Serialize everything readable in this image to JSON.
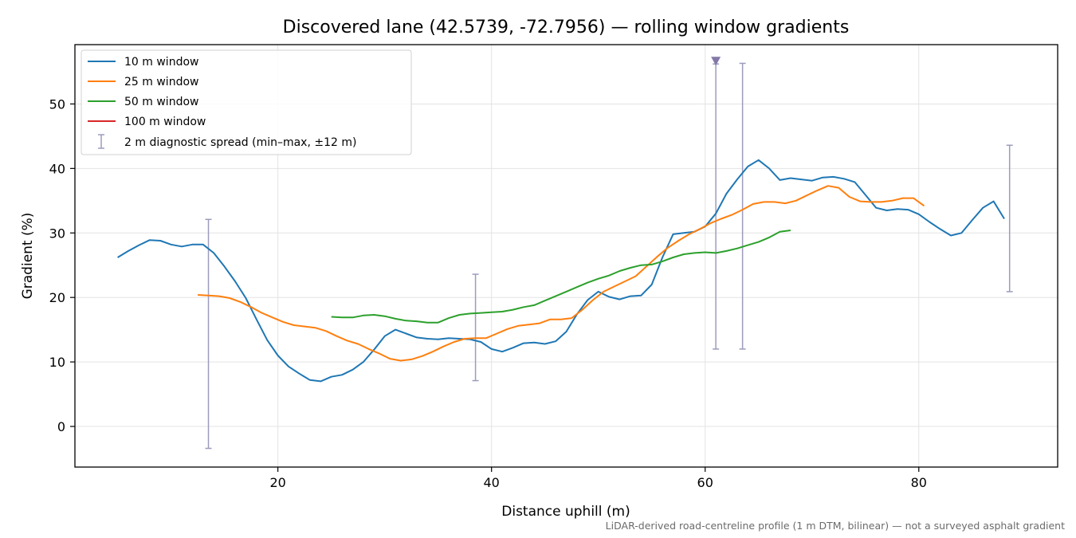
{
  "chart_data": {
    "type": "line",
    "title": "Discovered lane (42.5739, -72.7956) — rolling window gradients",
    "xlabel": "Distance uphill (m)",
    "ylabel": "Gradient (%)",
    "footnote": "LiDAR-derived road-centreline profile (1 m DTM, bilinear) — not a surveyed asphalt gradient",
    "xlim": [
      1,
      93
    ],
    "ylim": [
      -6.3,
      59.2
    ],
    "xticks": [
      20,
      40,
      60,
      80
    ],
    "yticks": [
      0,
      10,
      20,
      30,
      40,
      50
    ],
    "grid": true,
    "legend_position": "top-left",
    "series": [
      {
        "name": "10 m window",
        "color": "#1f77b4",
        "x": [
          5,
          6,
          7,
          8,
          9,
          10,
          11,
          12,
          13,
          14,
          15,
          16,
          17,
          18,
          19,
          20,
          21,
          22,
          23,
          24,
          25,
          26,
          27,
          28,
          29,
          30,
          31,
          32,
          33,
          34,
          35,
          36,
          37,
          38,
          39,
          40,
          41,
          42,
          43,
          44,
          45,
          46,
          47,
          48,
          49,
          50,
          51,
          52,
          53,
          54,
          55,
          56,
          57,
          58,
          59,
          60,
          61,
          62,
          63,
          64,
          65,
          66,
          67,
          68,
          69,
          70,
          71,
          72,
          73,
          74,
          75,
          76,
          77,
          78,
          79,
          80,
          81,
          82,
          83,
          84,
          85,
          86,
          87,
          88
        ],
        "values": [
          26.2,
          27.2,
          28.1,
          28.9,
          28.8,
          28.2,
          27.9,
          28.2,
          28.2,
          26.9,
          24.8,
          22.5,
          19.9,
          16.6,
          13.4,
          11.0,
          9.3,
          8.2,
          7.2,
          7.0,
          7.7,
          8.0,
          8.8,
          10.0,
          11.9,
          14.0,
          15.0,
          14.4,
          13.8,
          13.6,
          13.5,
          13.7,
          13.6,
          13.5,
          13.1,
          12.0,
          11.6,
          12.2,
          12.9,
          13.0,
          12.8,
          13.2,
          14.7,
          17.4,
          19.6,
          20.9,
          20.1,
          19.7,
          20.2,
          20.3,
          22.0,
          26.2,
          29.8,
          30.0,
          30.2,
          31.0,
          33.0,
          36.1,
          38.3,
          40.3,
          41.3,
          40.0,
          38.2,
          38.5,
          38.3,
          38.1,
          38.6,
          38.7,
          38.4,
          37.9,
          35.9,
          33.9,
          33.5,
          33.7,
          33.6,
          32.9,
          31.7,
          30.6,
          29.6,
          30.0,
          32.0,
          33.9,
          34.9,
          32.2
        ]
      },
      {
        "name": "25 m window",
        "color": "#ff7f0e",
        "x": [
          12.5,
          13.5,
          14.5,
          15.5,
          16.5,
          17.5,
          18.5,
          19.5,
          20.5,
          21.5,
          22.5,
          23.5,
          24.5,
          25.5,
          26.5,
          27.5,
          28.5,
          29.5,
          30.5,
          31.5,
          32.5,
          33.5,
          34.5,
          35.5,
          36.5,
          37.5,
          38.5,
          39.5,
          40.5,
          41.5,
          42.5,
          43.5,
          44.5,
          45.5,
          46.5,
          47.5,
          48.5,
          49.5,
          50.5,
          51.5,
          52.5,
          53.5,
          54.5,
          55.5,
          56.5,
          57.5,
          58.5,
          59.5,
          60.5,
          61.5,
          62.5,
          63.5,
          64.5,
          65.5,
          66.5,
          67.5,
          68.5,
          69.5,
          70.5,
          71.5,
          72.5,
          73.5,
          74.5,
          75.5,
          76.5,
          77.5,
          78.5,
          79.5,
          80.5
        ],
        "values": [
          20.4,
          20.3,
          20.2,
          19.9,
          19.3,
          18.5,
          17.6,
          16.9,
          16.2,
          15.7,
          15.5,
          15.3,
          14.8,
          14.0,
          13.3,
          12.8,
          12.0,
          11.3,
          10.5,
          10.2,
          10.4,
          10.9,
          11.6,
          12.4,
          13.1,
          13.6,
          13.7,
          13.7,
          14.4,
          15.1,
          15.6,
          15.8,
          16.0,
          16.6,
          16.6,
          16.8,
          18.1,
          19.6,
          20.9,
          21.7,
          22.5,
          23.3,
          24.8,
          26.3,
          27.7,
          28.8,
          29.8,
          30.6,
          31.5,
          32.2,
          32.8,
          33.6,
          34.5,
          34.8,
          34.8,
          34.6,
          35.0,
          35.8,
          36.6,
          37.3,
          37.0,
          35.6,
          34.9,
          34.8,
          34.8,
          35.0,
          35.4,
          35.4,
          34.2
        ]
      },
      {
        "name": "50 m window",
        "color": "#2ca02c",
        "x": [
          25,
          26,
          27,
          28,
          29,
          30,
          31,
          32,
          33,
          34,
          35,
          36,
          37,
          38,
          39,
          40,
          41,
          42,
          43,
          44,
          45,
          46,
          47,
          48,
          49,
          50,
          51,
          52,
          53,
          54,
          55,
          56,
          57,
          58,
          59,
          60,
          61,
          62,
          63,
          64,
          65,
          66,
          67,
          68
        ],
        "values": [
          17.0,
          16.9,
          16.9,
          17.2,
          17.3,
          17.1,
          16.7,
          16.4,
          16.3,
          16.1,
          16.1,
          16.8,
          17.3,
          17.5,
          17.6,
          17.7,
          17.8,
          18.1,
          18.5,
          18.8,
          19.5,
          20.2,
          20.9,
          21.6,
          22.3,
          22.9,
          23.4,
          24.1,
          24.6,
          25.0,
          25.1,
          25.6,
          26.2,
          26.7,
          26.9,
          27.0,
          26.9,
          27.2,
          27.6,
          28.1,
          28.6,
          29.3,
          30.2,
          30.4
        ]
      },
      {
        "name": "100 m window",
        "color": "#d62728",
        "x": [],
        "values": []
      }
    ],
    "spread": {
      "name": "2 m diagnostic spread (min–max, ±12 m)",
      "color": "#9c9cbd",
      "bars": [
        {
          "x": 13.5,
          "min": -3.4,
          "max": 32.1
        },
        {
          "x": 38.5,
          "min": 7.1,
          "max": 23.6
        },
        {
          "x": 61.0,
          "min": 12.0,
          "max": 56.2
        },
        {
          "x": 63.5,
          "min": 12.0,
          "max": 56.3
        },
        {
          "x": 88.5,
          "min": 20.9,
          "max": 43.6
        }
      ],
      "clipped_marker": {
        "x": 61.0,
        "y": 56.7,
        "color": "#8478a8"
      }
    }
  }
}
